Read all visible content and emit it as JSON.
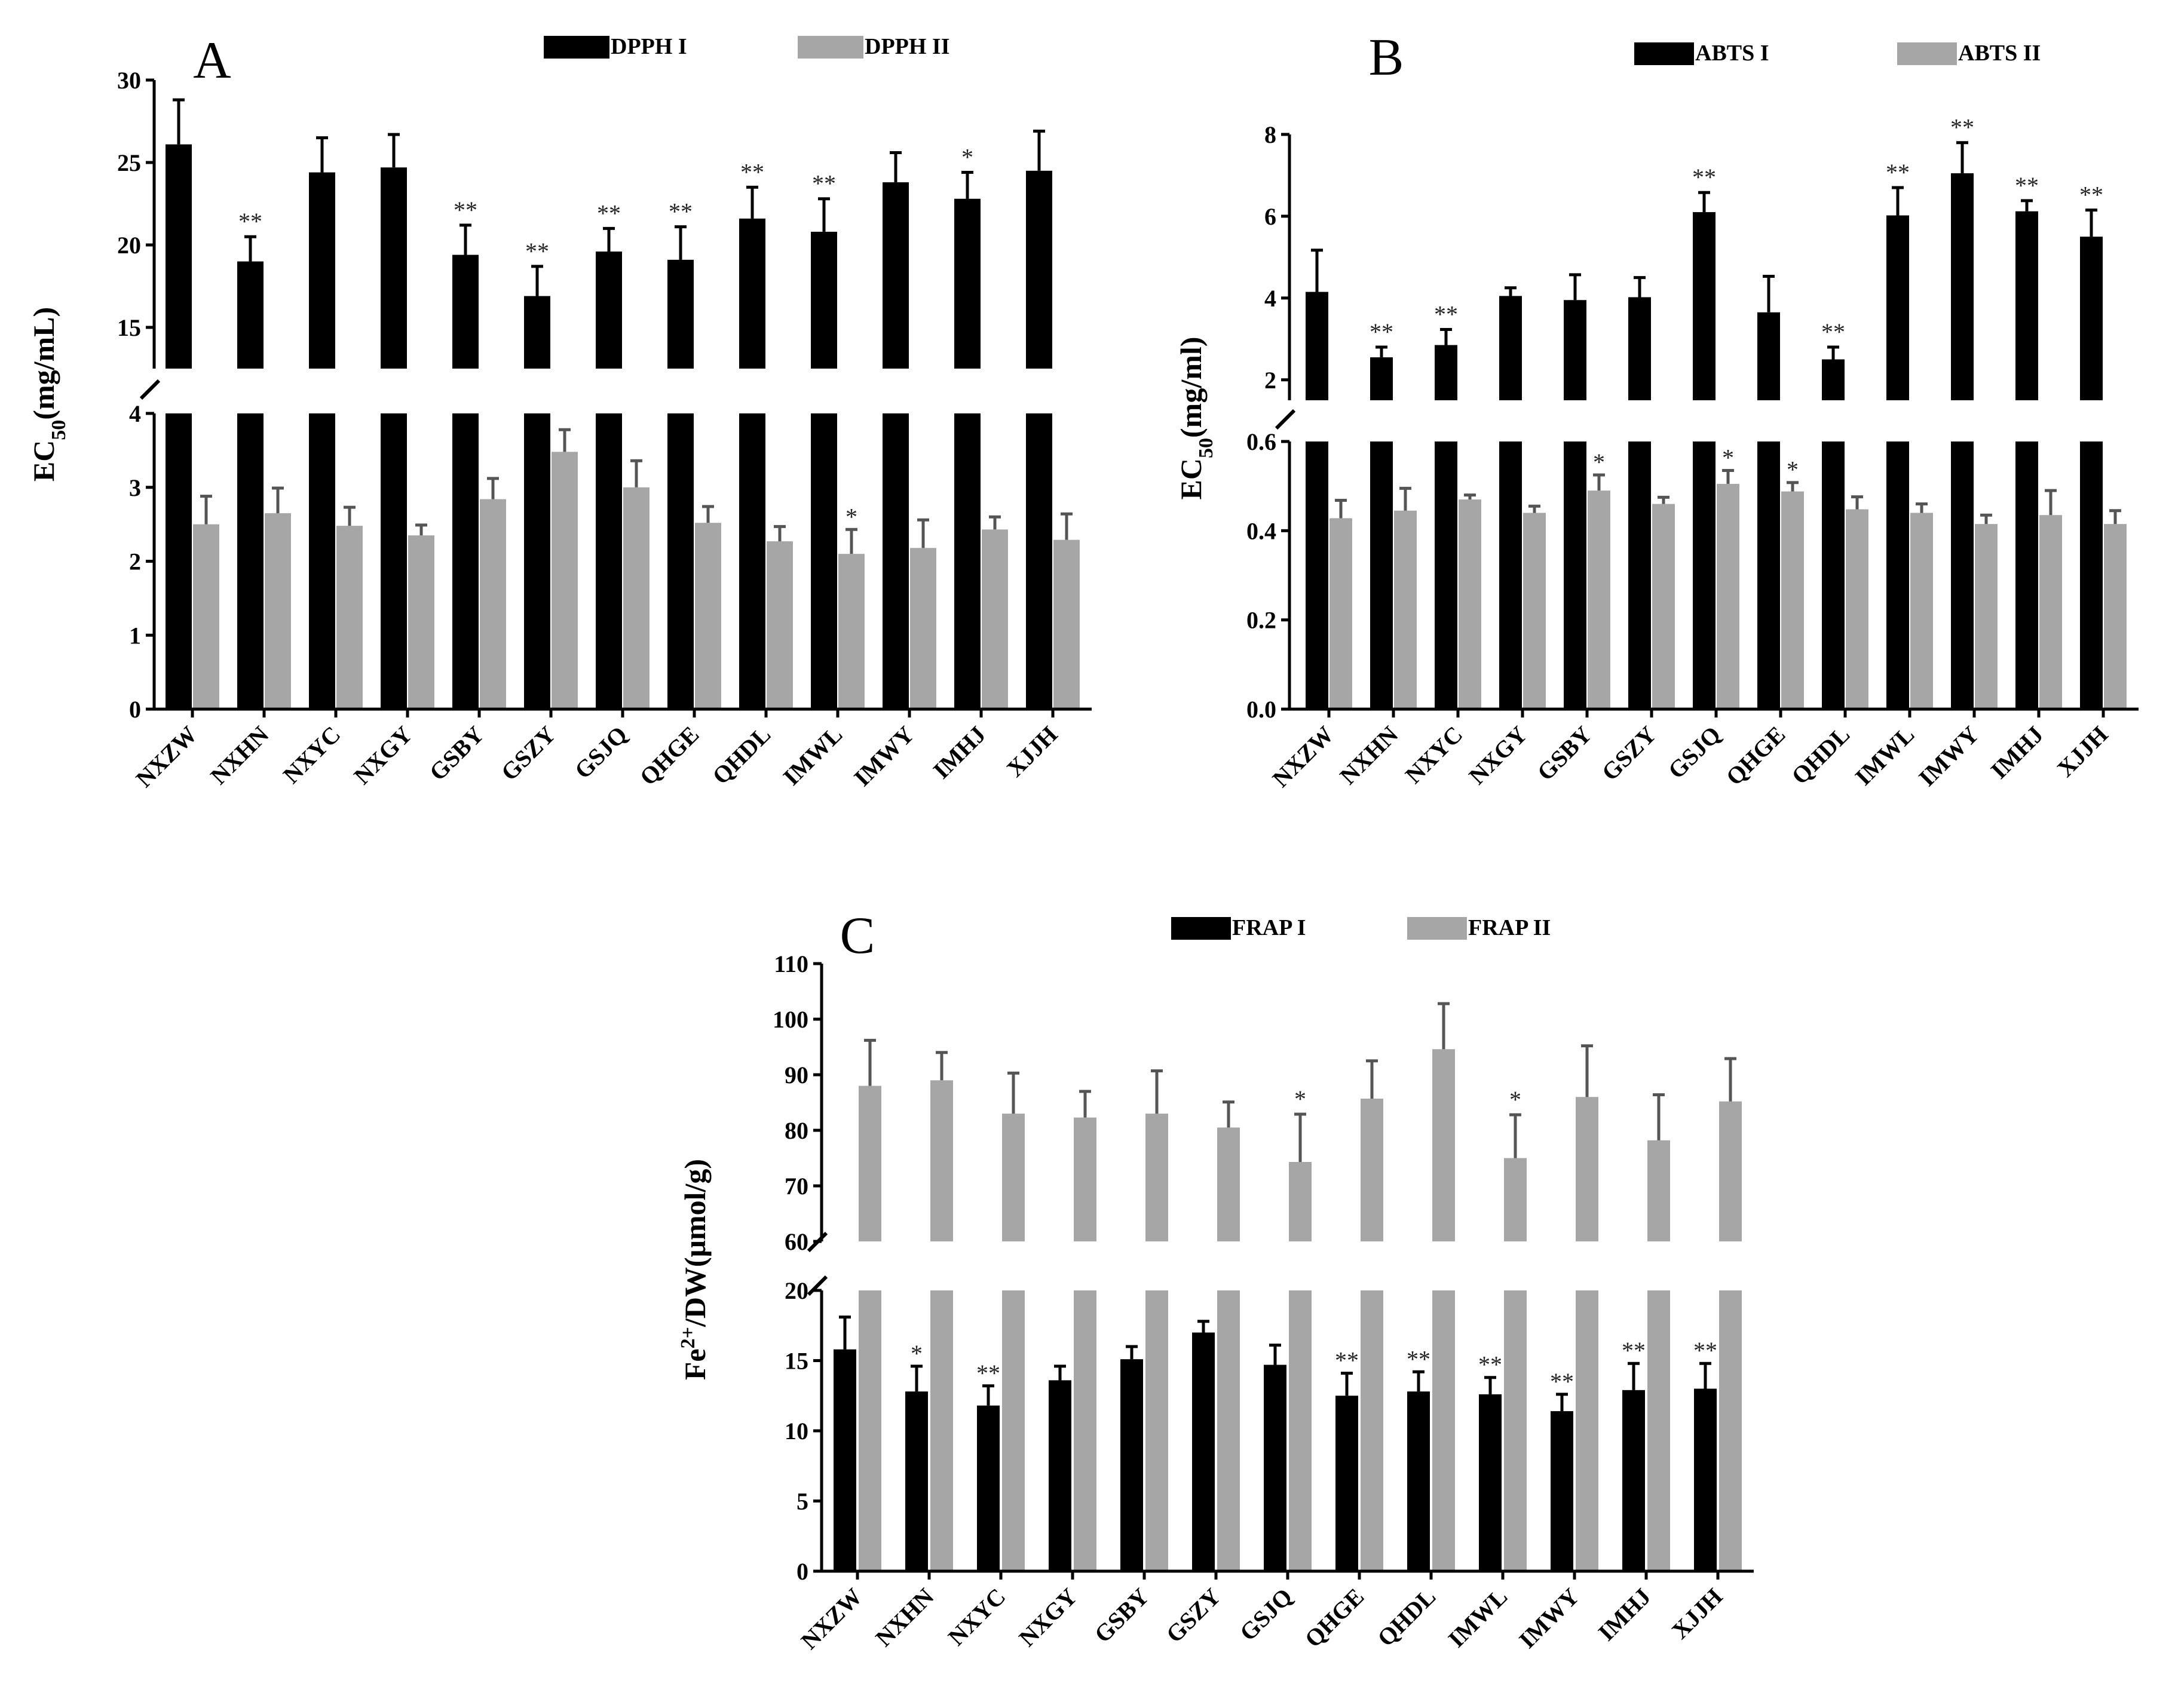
{
  "chart_data": [
    {
      "type": "bar",
      "panel": "A",
      "categories": [
        "NXZW",
        "NXHN",
        "NXYC",
        "NXGY",
        "GSBY",
        "GSZY",
        "GSJQ",
        "QHGE",
        "QHDL",
        "IMWL",
        "IMWY",
        "IMHJ",
        "XJJH"
      ],
      "ylabel": "EC50(mg/mL)",
      "ylabel_main": "EC",
      "ylabel_sub": "50",
      "ylabel_tail": "(mg/mL)",
      "broken_axis": {
        "lower_range": [
          0,
          4
        ],
        "upper_range": [
          12.5,
          30
        ]
      },
      "lower_ticks": [
        "0",
        "1",
        "2",
        "3",
        "4"
      ],
      "upper_ticks": [
        "15",
        "20",
        "25",
        "30"
      ],
      "series": [
        {
          "name": "DPPH I",
          "color": "#000000",
          "values": [
            26.1,
            19.0,
            24.4,
            24.7,
            19.4,
            16.9,
            19.6,
            19.1,
            21.6,
            20.8,
            23.8,
            22.8,
            24.5
          ],
          "errors": [
            2.7,
            1.5,
            2.1,
            2.0,
            1.8,
            1.8,
            1.4,
            2.0,
            1.9,
            2.0,
            1.8,
            1.6,
            2.4
          ],
          "significance": [
            "",
            "**",
            "",
            "",
            "**",
            "**",
            "**",
            "**",
            "**",
            "**",
            "",
            "*",
            ""
          ]
        },
        {
          "name": "DPPH II",
          "color": "#a6a6a6",
          "values": [
            2.5,
            2.65,
            2.48,
            2.35,
            2.84,
            3.48,
            3.0,
            2.52,
            2.27,
            2.1,
            2.18,
            2.43,
            2.29
          ],
          "errors": [
            0.38,
            0.34,
            0.25,
            0.14,
            0.28,
            0.3,
            0.36,
            0.22,
            0.2,
            0.33,
            0.38,
            0.17,
            0.35
          ],
          "significance": [
            "",
            "",
            "",
            "",
            "",
            "",
            "",
            "",
            "",
            "*",
            "",
            "",
            ""
          ]
        }
      ]
    },
    {
      "type": "bar",
      "panel": "B",
      "categories": [
        "NXZW",
        "NXHN",
        "NXYC",
        "NXGY",
        "GSBY",
        "GSZY",
        "GSJQ",
        "QHGE",
        "QHDL",
        "IMWL",
        "IMWY",
        "IMHJ",
        "XJJH"
      ],
      "ylabel": "EC50(mg/ml)",
      "ylabel_main": "EC",
      "ylabel_sub": "50",
      "ylabel_tail": "(mg/ml)",
      "broken_axis": {
        "lower_range": [
          0,
          0.6
        ],
        "upper_range": [
          1.5,
          8
        ]
      },
      "lower_ticks": [
        "0.0",
        "0.2",
        "0.4",
        "0.6"
      ],
      "upper_ticks": [
        "2",
        "4",
        "6",
        "8"
      ],
      "series": [
        {
          "name": "ABTS I",
          "color": "#000000",
          "values": [
            4.15,
            2.55,
            2.85,
            4.05,
            3.95,
            4.02,
            6.1,
            3.65,
            2.5,
            6.02,
            7.05,
            6.12,
            5.5
          ],
          "errors": [
            1.02,
            0.25,
            0.38,
            0.2,
            0.62,
            0.48,
            0.48,
            0.88,
            0.3,
            0.68,
            0.75,
            0.26,
            0.65
          ],
          "significance": [
            "",
            "**",
            "**",
            "",
            "",
            "",
            "**",
            "",
            "**",
            "**",
            "**",
            "**",
            "**"
          ]
        },
        {
          "name": "ABTS II",
          "color": "#a6a6a6",
          "values": [
            0.428,
            0.445,
            0.47,
            0.44,
            0.49,
            0.46,
            0.505,
            0.488,
            0.448,
            0.44,
            0.415,
            0.435,
            0.415
          ],
          "errors": [
            0.04,
            0.05,
            0.01,
            0.015,
            0.035,
            0.015,
            0.03,
            0.02,
            0.028,
            0.02,
            0.02,
            0.055,
            0.03
          ],
          "significance": [
            "",
            "",
            "",
            "",
            "*",
            "",
            "*",
            "*",
            "",
            "",
            "",
            "",
            ""
          ]
        }
      ]
    },
    {
      "type": "bar",
      "panel": "C",
      "categories": [
        "NXZW",
        "NXHN",
        "NXYC",
        "NXGY",
        "GSBY",
        "GSZY",
        "GSJQ",
        "QHGE",
        "QHDL",
        "IMWL",
        "IMWY",
        "IMHJ",
        "XJJH"
      ],
      "ylabel": "Fe2+/DW(μmol/g)",
      "ylabel_main": "Fe",
      "ylabel_sup": "2+",
      "ylabel_tail": "/DW(μmol/g)",
      "broken_axis": {
        "lower_range": [
          0,
          20
        ],
        "upper_range": [
          60,
          110
        ]
      },
      "lower_ticks": [
        "0",
        "5",
        "10",
        "15",
        "20"
      ],
      "upper_ticks": [
        "60",
        "70",
        "80",
        "90",
        "100",
        "110"
      ],
      "series": [
        {
          "name": "FRAP I",
          "color": "#000000",
          "values": [
            15.8,
            12.8,
            11.8,
            13.6,
            15.1,
            17.0,
            14.7,
            12.5,
            12.8,
            12.6,
            11.4,
            12.9,
            13.0
          ],
          "errors": [
            2.3,
            1.8,
            1.4,
            1.0,
            0.9,
            0.8,
            1.4,
            1.6,
            1.4,
            1.2,
            1.2,
            1.9,
            1.8
          ],
          "significance": [
            "",
            "*",
            "**",
            "",
            "",
            "",
            "",
            "**",
            "**",
            "**",
            "**",
            "**",
            "**"
          ]
        },
        {
          "name": "FRAP II",
          "color": "#a6a6a6",
          "values": [
            88.0,
            89.0,
            83.0,
            82.3,
            83.0,
            80.5,
            74.3,
            85.7,
            94.6,
            75.0,
            86.0,
            78.2,
            85.2
          ],
          "errors": [
            8.2,
            5.0,
            7.3,
            4.7,
            7.7,
            4.6,
            8.6,
            6.8,
            8.2,
            7.8,
            9.2,
            8.2,
            7.7
          ],
          "significance": [
            "",
            "",
            "",
            "",
            "",
            "",
            "*",
            "",
            "",
            "*",
            "",
            "",
            ""
          ]
        }
      ]
    }
  ]
}
